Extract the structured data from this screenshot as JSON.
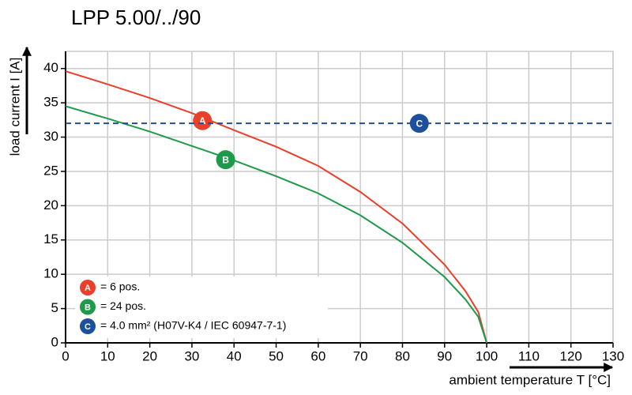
{
  "chart_data": {
    "type": "line",
    "title": "LPP 5.00/../90",
    "x_label": "ambient temperature T [°C]",
    "y_label": "load current I [A]",
    "x": [
      0,
      10,
      20,
      30,
      40,
      50,
      60,
      70,
      80,
      90,
      95,
      98,
      100
    ],
    "series": [
      {
        "name": "= 6 pos.",
        "marker": "A",
        "color": "#e8402a",
        "values": [
          39.6,
          37.7,
          35.7,
          33.5,
          31.0,
          28.6,
          25.8,
          22.0,
          17.4,
          11.4,
          7.5,
          4.5,
          0
        ]
      },
      {
        "name": "= 24 pos.",
        "marker": "B",
        "color": "#1f9a4a",
        "values": [
          34.5,
          32.7,
          30.8,
          28.7,
          26.6,
          24.3,
          21.8,
          18.6,
          14.6,
          9.6,
          6.3,
          3.8,
          0
        ]
      }
    ],
    "hlines": [
      {
        "name": "= 4.0 mm² (H07V-K4 / IEC 60947-7-1)",
        "marker": "C",
        "color": "#1c4f9c",
        "value": 32
      }
    ],
    "xlim": [
      0,
      130
    ],
    "xticks": [
      0,
      10,
      20,
      30,
      40,
      50,
      60,
      70,
      80,
      90,
      100,
      110,
      120,
      130
    ],
    "ylim": [
      0,
      42.5
    ],
    "yticks": [
      0,
      5,
      10,
      15,
      20,
      25,
      30,
      35,
      40
    ],
    "grid": true
  }
}
